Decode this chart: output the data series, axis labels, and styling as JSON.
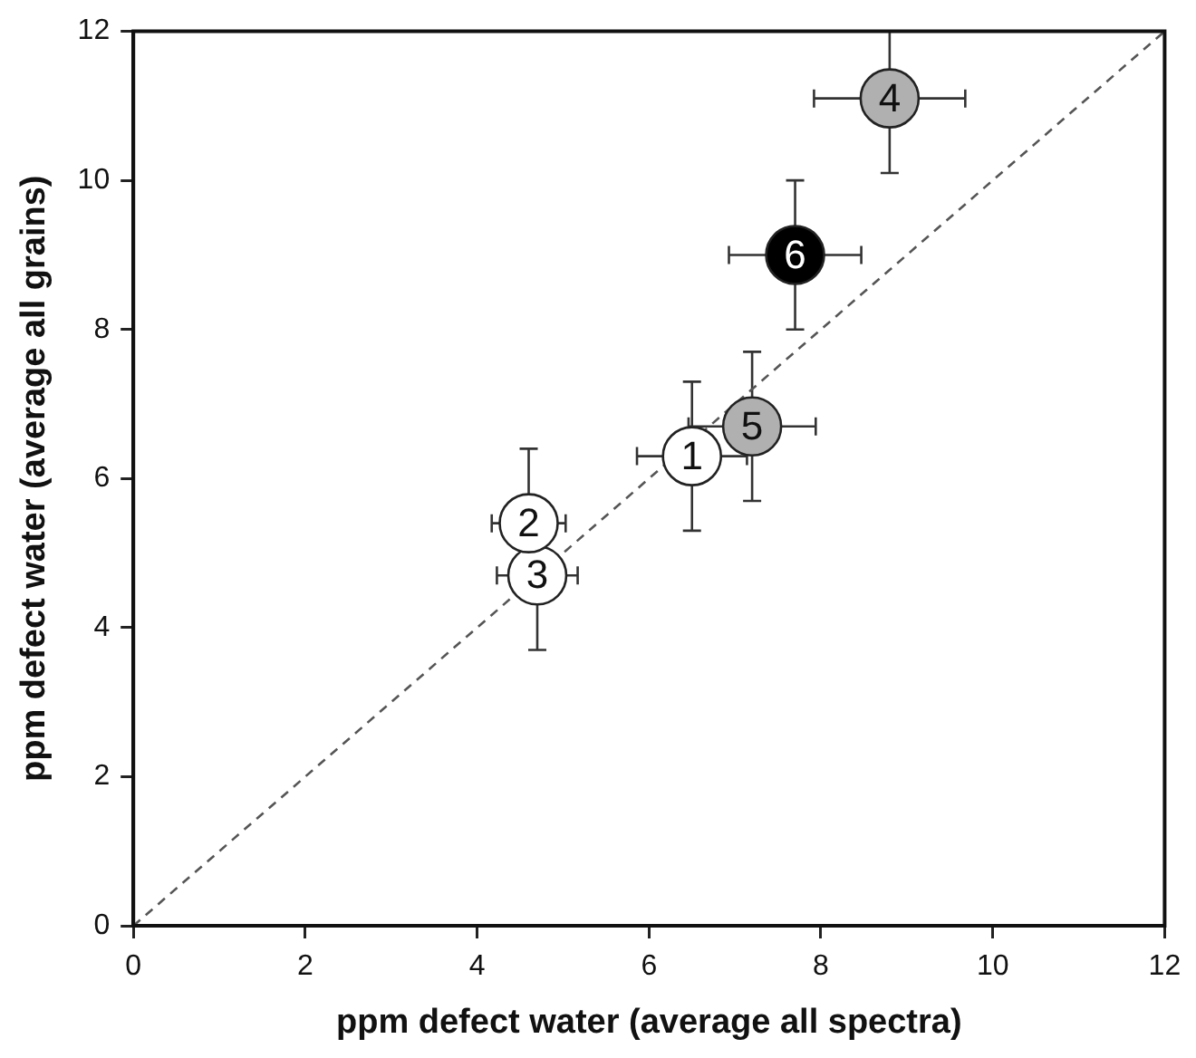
{
  "chart_data": {
    "type": "scatter",
    "xlabel": "ppm defect water (average all spectra)",
    "ylabel": "ppm defect water (average all grains)",
    "xlim": [
      0,
      12
    ],
    "ylim": [
      0,
      12
    ],
    "xticks": [
      0,
      2,
      4,
      6,
      8,
      10,
      12
    ],
    "yticks": [
      0,
      2,
      4,
      6,
      8,
      10,
      12
    ],
    "grid": false,
    "series": [
      {
        "type": "line",
        "x": [
          0,
          12
        ],
        "values": [
          0,
          12
        ],
        "color": "#555555",
        "line_style": "dashed",
        "marker": "none"
      },
      {
        "name": "1",
        "marker": "circle",
        "x": [
          6.5
        ],
        "values": [
          6.3
        ],
        "color": "#ffffff",
        "errors": [
          1.0
        ],
        "xerrors": [
          0.64
        ]
      },
      {
        "name": "2",
        "marker": "circle",
        "x": [
          4.6
        ],
        "values": [
          5.4
        ],
        "color": "#ffffff",
        "errors": [
          1.0
        ],
        "xerrors": [
          0.43
        ]
      },
      {
        "name": "3",
        "marker": "circle",
        "x": [
          4.7
        ],
        "values": [
          4.7
        ],
        "color": "#ffffff",
        "errors": [
          1.0
        ],
        "xerrors": [
          0.47
        ]
      },
      {
        "name": "4",
        "marker": "circle",
        "x": [
          8.8
        ],
        "values": [
          11.1
        ],
        "color": "#b0b0b0",
        "errors": [
          [
            10.1,
            12
          ]
        ],
        "xerrors": [
          0.88
        ]
      },
      {
        "name": "5",
        "marker": "circle",
        "x": [
          7.2
        ],
        "values": [
          6.7
        ],
        "color": "#b0b0b0",
        "errors": [
          1.0
        ],
        "xerrors": [
          0.74
        ]
      },
      {
        "name": "6",
        "marker": "circle",
        "x": [
          7.7
        ],
        "values": [
          9.0
        ],
        "color": "#000000",
        "errors": [
          1.0
        ],
        "xerrors": [
          0.77
        ]
      }
    ]
  }
}
